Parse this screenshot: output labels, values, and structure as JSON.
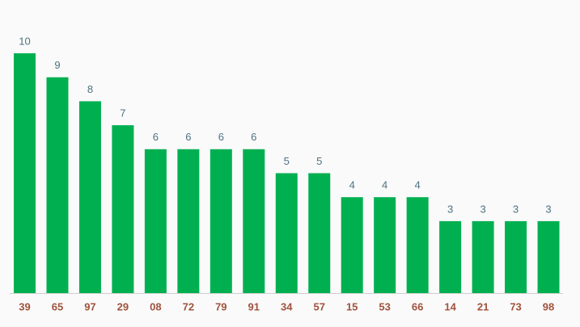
{
  "chart_data": {
    "type": "bar",
    "categories": [
      "39",
      "65",
      "97",
      "29",
      "08",
      "72",
      "79",
      "91",
      "34",
      "57",
      "15",
      "53",
      "66",
      "14",
      "21",
      "73",
      "98"
    ],
    "values": [
      10,
      9,
      8,
      7,
      6,
      6,
      6,
      6,
      5,
      5,
      4,
      4,
      4,
      3,
      3,
      3,
      3
    ],
    "color": "#00b050"
  }
}
